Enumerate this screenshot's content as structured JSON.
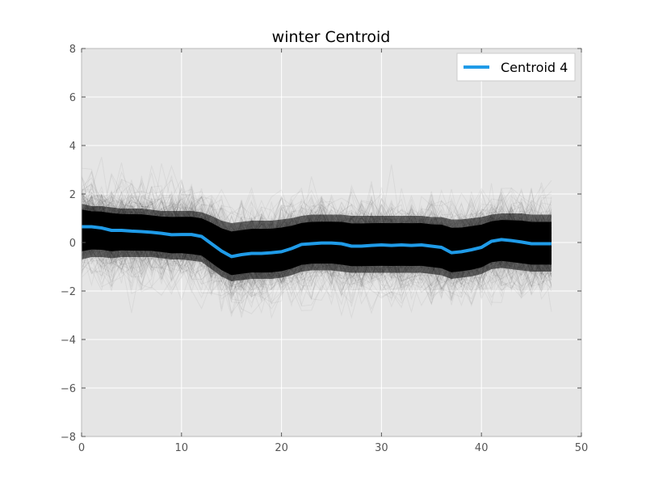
{
  "chart_data": {
    "type": "line",
    "title": "winter Centroid",
    "xlabel": "",
    "ylabel": "",
    "xlim": [
      0,
      50
    ],
    "ylim": [
      -8,
      8
    ],
    "xticks": [
      "0",
      "10",
      "20",
      "30",
      "40",
      "50"
    ],
    "yticks": [
      "8",
      "6",
      "4",
      "2",
      "0",
      "−2",
      "−4",
      "−6",
      "−8"
    ],
    "grid": true,
    "legend_position": "top-right",
    "series": [
      {
        "name": "Centroid 4",
        "color": "#1f9be8",
        "x": [
          0,
          1,
          2,
          3,
          4,
          5,
          6,
          7,
          8,
          9,
          10,
          11,
          12,
          13,
          14,
          15,
          16,
          17,
          18,
          19,
          20,
          21,
          22,
          23,
          24,
          25,
          26,
          27,
          28,
          29,
          30,
          31,
          32,
          33,
          34,
          35,
          36,
          37,
          38,
          39,
          40,
          41,
          42,
          43,
          44,
          45,
          46,
          47
        ],
        "y": [
          0.65,
          0.65,
          0.6,
          0.5,
          0.5,
          0.47,
          0.45,
          0.42,
          0.38,
          0.32,
          0.33,
          0.33,
          0.25,
          -0.05,
          -0.35,
          -0.58,
          -0.5,
          -0.45,
          -0.45,
          -0.42,
          -0.38,
          -0.25,
          -0.08,
          -0.05,
          -0.02,
          -0.02,
          -0.05,
          -0.15,
          -0.15,
          -0.12,
          -0.1,
          -0.12,
          -0.1,
          -0.12,
          -0.1,
          -0.15,
          -0.2,
          -0.42,
          -0.38,
          -0.3,
          -0.2,
          0.05,
          0.12,
          0.08,
          0.02,
          -0.05,
          -0.05,
          -0.05
        ]
      }
    ],
    "background_band": {
      "description_color": "#000000",
      "upper": [
        1.6,
        1.5,
        1.5,
        1.45,
        1.4,
        1.4,
        1.4,
        1.35,
        1.3,
        1.3,
        1.3,
        1.3,
        1.25,
        1.1,
        0.9,
        0.8,
        0.85,
        0.9,
        0.9,
        0.9,
        0.95,
        1.0,
        1.1,
        1.15,
        1.15,
        1.15,
        1.15,
        1.1,
        1.1,
        1.1,
        1.1,
        1.1,
        1.1,
        1.1,
        1.1,
        1.05,
        1.05,
        0.95,
        0.95,
        1.0,
        1.05,
        1.15,
        1.2,
        1.2,
        1.2,
        1.15,
        1.15,
        1.15
      ],
      "lower": [
        -0.7,
        -0.6,
        -0.6,
        -0.65,
        -0.6,
        -0.6,
        -0.6,
        -0.6,
        -0.65,
        -0.7,
        -0.7,
        -0.75,
        -0.8,
        -1.1,
        -1.4,
        -1.6,
        -1.55,
        -1.5,
        -1.5,
        -1.5,
        -1.45,
        -1.35,
        -1.2,
        -1.15,
        -1.15,
        -1.15,
        -1.2,
        -1.25,
        -1.25,
        -1.25,
        -1.25,
        -1.25,
        -1.25,
        -1.25,
        -1.25,
        -1.3,
        -1.35,
        -1.5,
        -1.45,
        -1.4,
        -1.3,
        -1.1,
        -1.05,
        -1.1,
        -1.15,
        -1.2,
        -1.2,
        -1.2
      ]
    }
  }
}
